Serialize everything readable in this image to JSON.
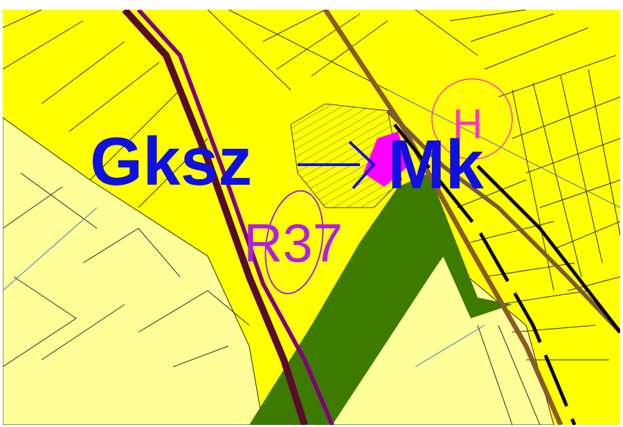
{
  "map": {
    "labels": {
      "from_zone": "Gksz",
      "to_zone": "Mk",
      "road": "R37",
      "marker": "H"
    }
  }
}
